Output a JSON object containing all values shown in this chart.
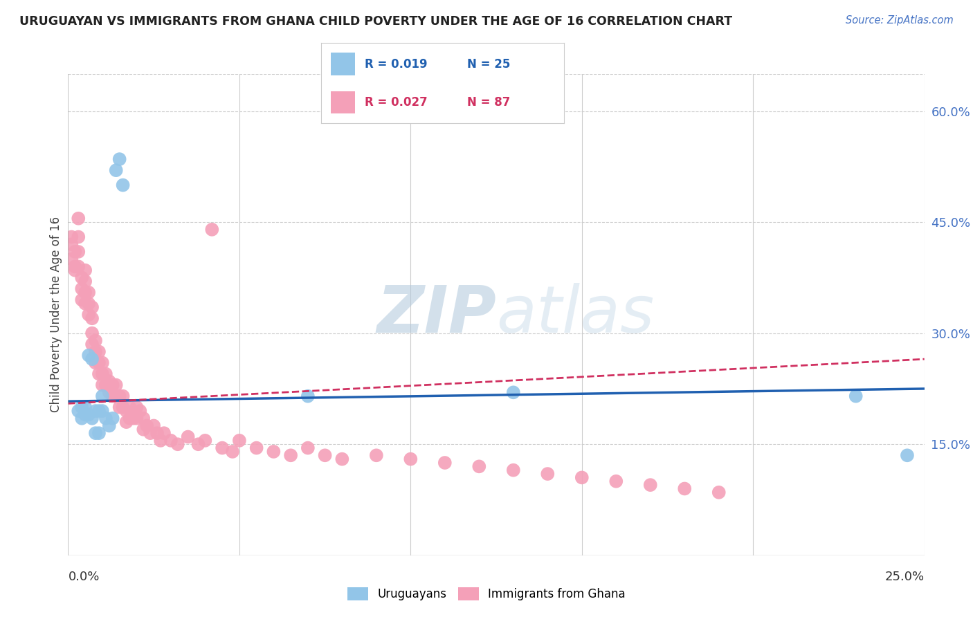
{
  "title": "URUGUAYAN VS IMMIGRANTS FROM GHANA CHILD POVERTY UNDER THE AGE OF 16 CORRELATION CHART",
  "source": "Source: ZipAtlas.com",
  "ylabel": "Child Poverty Under the Age of 16",
  "ytick_values": [
    0.15,
    0.3,
    0.45,
    0.6
  ],
  "ytick_labels": [
    "15.0%",
    "30.0%",
    "45.0%",
    "60.0%"
  ],
  "xlim": [
    0.0,
    0.25
  ],
  "ylim": [
    0.0,
    0.65
  ],
  "blue_color": "#92C5E8",
  "pink_color": "#F4A0B8",
  "blue_line_color": "#2060B0",
  "pink_line_color": "#D03060",
  "watermark_zip_color": "#B8CEDE",
  "watermark_atlas_color": "#C8D8E8",
  "background_color": "#FFFFFF",
  "legend_r_blue": "R = 0.019",
  "legend_n_blue": "N = 25",
  "legend_r_pink": "R = 0.027",
  "legend_n_pink": "N = 87",
  "legend_text_blue_color": "#2060B0",
  "legend_text_pink_color": "#D03060",
  "blue_x": [
    0.003,
    0.004,
    0.004,
    0.005,
    0.005,
    0.006,
    0.006,
    0.007,
    0.007,
    0.008,
    0.008,
    0.009,
    0.009,
    0.01,
    0.01,
    0.011,
    0.012,
    0.013,
    0.014,
    0.015,
    0.016,
    0.07,
    0.13,
    0.23,
    0.245
  ],
  "blue_y": [
    0.195,
    0.185,
    0.2,
    0.19,
    0.2,
    0.19,
    0.27,
    0.185,
    0.265,
    0.195,
    0.165,
    0.195,
    0.165,
    0.215,
    0.195,
    0.185,
    0.175,
    0.185,
    0.52,
    0.535,
    0.5,
    0.215,
    0.22,
    0.215,
    0.135
  ],
  "pink_x": [
    0.001,
    0.001,
    0.001,
    0.002,
    0.002,
    0.002,
    0.003,
    0.003,
    0.003,
    0.003,
    0.004,
    0.004,
    0.004,
    0.005,
    0.005,
    0.005,
    0.005,
    0.006,
    0.006,
    0.006,
    0.007,
    0.007,
    0.007,
    0.007,
    0.008,
    0.008,
    0.008,
    0.009,
    0.009,
    0.009,
    0.01,
    0.01,
    0.01,
    0.011,
    0.011,
    0.012,
    0.012,
    0.013,
    0.013,
    0.014,
    0.014,
    0.015,
    0.015,
    0.016,
    0.016,
    0.017,
    0.017,
    0.018,
    0.018,
    0.019,
    0.02,
    0.02,
    0.021,
    0.022,
    0.022,
    0.023,
    0.024,
    0.025,
    0.026,
    0.027,
    0.028,
    0.03,
    0.032,
    0.035,
    0.038,
    0.04,
    0.042,
    0.045,
    0.048,
    0.05,
    0.055,
    0.06,
    0.065,
    0.07,
    0.075,
    0.08,
    0.09,
    0.1,
    0.11,
    0.12,
    0.13,
    0.14,
    0.15,
    0.16,
    0.17,
    0.18,
    0.19
  ],
  "pink_y": [
    0.4,
    0.43,
    0.42,
    0.39,
    0.41,
    0.385,
    0.455,
    0.43,
    0.41,
    0.39,
    0.375,
    0.36,
    0.345,
    0.385,
    0.37,
    0.355,
    0.34,
    0.355,
    0.34,
    0.325,
    0.335,
    0.32,
    0.3,
    0.285,
    0.29,
    0.275,
    0.26,
    0.275,
    0.26,
    0.245,
    0.26,
    0.245,
    0.23,
    0.245,
    0.23,
    0.235,
    0.22,
    0.23,
    0.215,
    0.23,
    0.215,
    0.215,
    0.2,
    0.215,
    0.2,
    0.195,
    0.18,
    0.2,
    0.185,
    0.185,
    0.2,
    0.185,
    0.195,
    0.185,
    0.17,
    0.175,
    0.165,
    0.175,
    0.165,
    0.155,
    0.165,
    0.155,
    0.15,
    0.16,
    0.15,
    0.155,
    0.44,
    0.145,
    0.14,
    0.155,
    0.145,
    0.14,
    0.135,
    0.145,
    0.135,
    0.13,
    0.135,
    0.13,
    0.125,
    0.12,
    0.115,
    0.11,
    0.105,
    0.1,
    0.095,
    0.09,
    0.085
  ],
  "blue_line_x": [
    0.0,
    0.25
  ],
  "blue_line_y": [
    0.208,
    0.225
  ],
  "pink_line_x": [
    0.0,
    0.25
  ],
  "pink_line_y": [
    0.205,
    0.265
  ]
}
